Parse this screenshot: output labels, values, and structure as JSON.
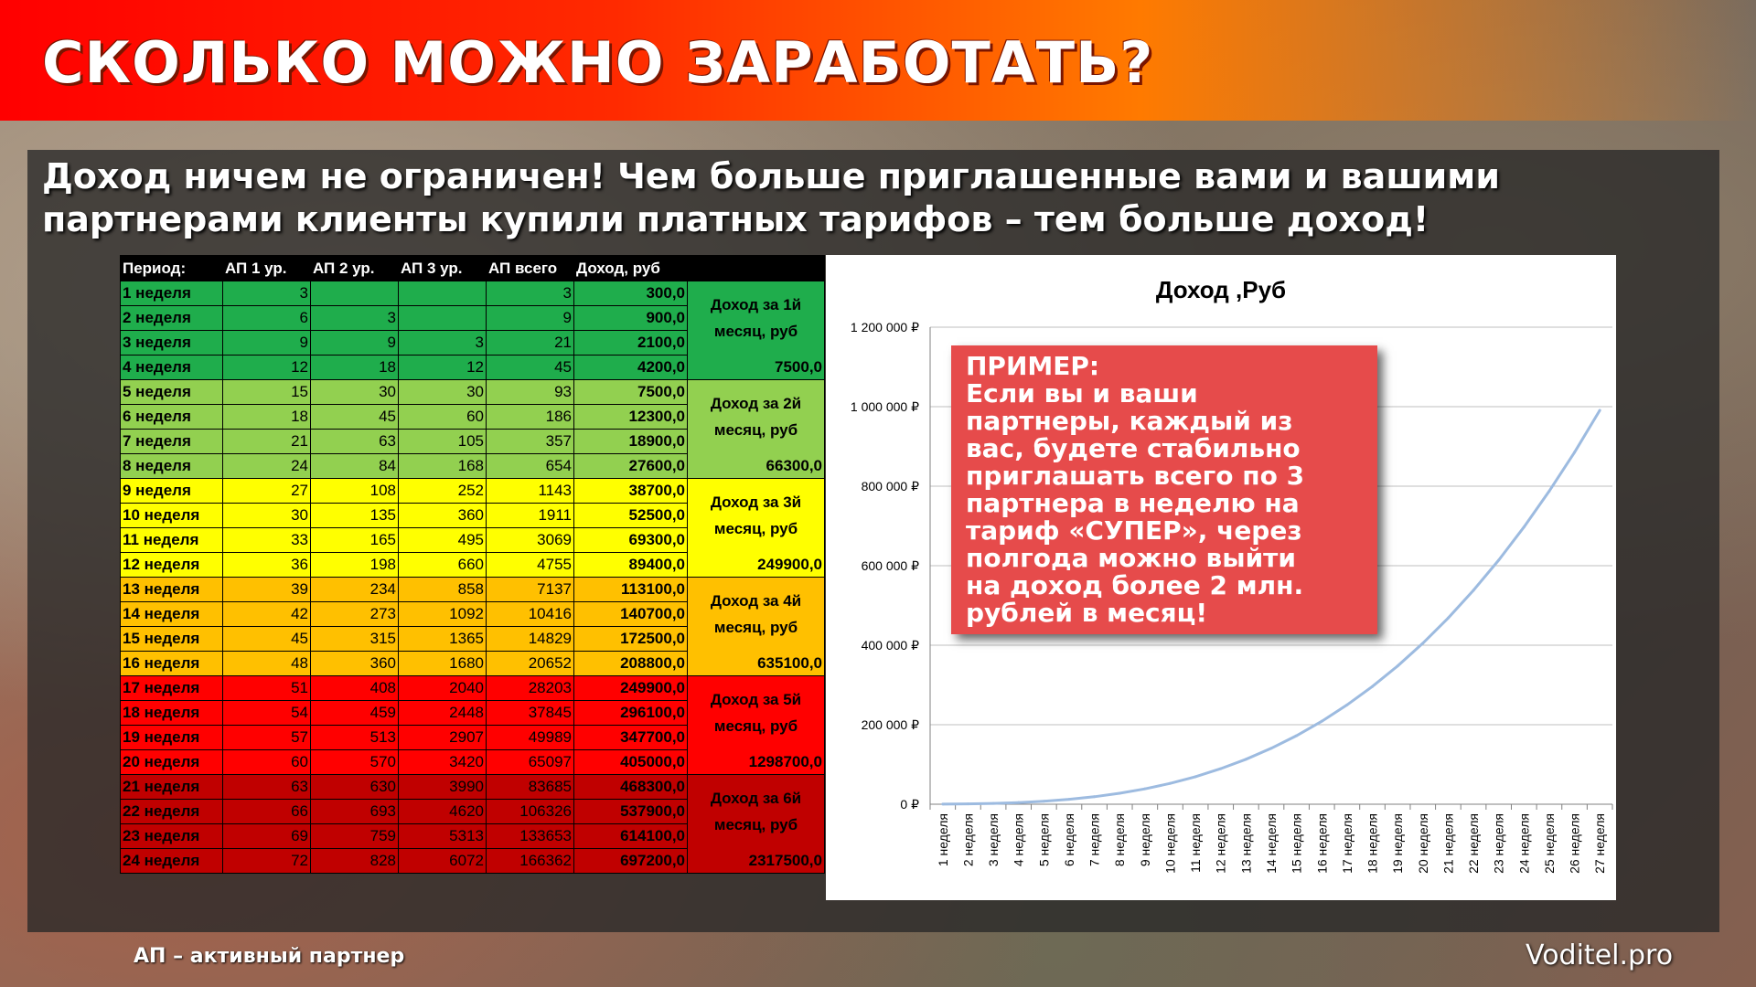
{
  "title": "СКОЛЬКО МОЖНО ЗАРАБОТАТЬ?",
  "subtitle": "Доход ничем не ограничен! Чем больше приглашенные вами и вашими партнерами клиенты купили платных тарифов – тем больше доход!",
  "table": {
    "headers": [
      "Период:",
      "АП 1 ур.",
      "АП 2 ур.",
      "АП 3 ур.",
      "АП всего",
      "Доход, руб"
    ],
    "rows": [
      [
        "1 неделя",
        "3",
        "",
        "",
        "3",
        "300,0"
      ],
      [
        "2 неделя",
        "6",
        "3",
        "",
        "9",
        "900,0"
      ],
      [
        "3 неделя",
        "9",
        "9",
        "3",
        "21",
        "2100,0"
      ],
      [
        "4 неделя",
        "12",
        "18",
        "12",
        "45",
        "4200,0"
      ],
      [
        "5 неделя",
        "15",
        "30",
        "30",
        "93",
        "7500,0"
      ],
      [
        "6 неделя",
        "18",
        "45",
        "60",
        "186",
        "12300,0"
      ],
      [
        "7 неделя",
        "21",
        "63",
        "105",
        "357",
        "18900,0"
      ],
      [
        "8 неделя",
        "24",
        "84",
        "168",
        "654",
        "27600,0"
      ],
      [
        "9 неделя",
        "27",
        "108",
        "252",
        "1143",
        "38700,0"
      ],
      [
        "10 неделя",
        "30",
        "135",
        "360",
        "1911",
        "52500,0"
      ],
      [
        "11 неделя",
        "33",
        "165",
        "495",
        "3069",
        "69300,0"
      ],
      [
        "12 неделя",
        "36",
        "198",
        "660",
        "4755",
        "89400,0"
      ],
      [
        "13 неделя",
        "39",
        "234",
        "858",
        "7137",
        "113100,0"
      ],
      [
        "14 неделя",
        "42",
        "273",
        "1092",
        "10416",
        "140700,0"
      ],
      [
        "15 неделя",
        "45",
        "315",
        "1365",
        "14829",
        "172500,0"
      ],
      [
        "16 неделя",
        "48",
        "360",
        "1680",
        "20652",
        "208800,0"
      ],
      [
        "17 неделя",
        "51",
        "408",
        "2040",
        "28203",
        "249900,0"
      ],
      [
        "18 неделя",
        "54",
        "459",
        "2448",
        "37845",
        "296100,0"
      ],
      [
        "19 неделя",
        "57",
        "513",
        "2907",
        "49989",
        "347700,0"
      ],
      [
        "20 неделя",
        "60",
        "570",
        "3420",
        "65097",
        "405000,0"
      ],
      [
        "21 неделя",
        "63",
        "630",
        "3990",
        "83685",
        "468300,0"
      ],
      [
        "22 неделя",
        "66",
        "693",
        "4620",
        "106326",
        "537900,0"
      ],
      [
        "23 неделя",
        "69",
        "759",
        "5313",
        "133653",
        "614100,0"
      ],
      [
        "24 неделя",
        "72",
        "828",
        "6072",
        "166362",
        "697200,0"
      ]
    ],
    "months": [
      {
        "label": "Доход за 1й месяц, руб",
        "total": "7500,0",
        "color": "#1fad4c"
      },
      {
        "label": "Доход за 2й месяц, руб",
        "total": "66300,0",
        "color": "#92d050"
      },
      {
        "label": "Доход за 3й месяц, руб",
        "total": "249900,0",
        "color": "#ffff00"
      },
      {
        "label": "Доход за 4й месяц, руб",
        "total": "635100,0",
        "color": "#ffc000"
      },
      {
        "label": "Доход за 5й месяц, руб",
        "total": "1298700,0",
        "color": "#ff0000"
      },
      {
        "label": "Доход за 6й месяц, руб",
        "total": "2317500,0",
        "color": "#c00000"
      }
    ]
  },
  "chart_data": {
    "type": "line",
    "title": "Доход ,Руб",
    "x": [
      "1 неделя",
      "2 неделя",
      "3 неделя",
      "4 неделя",
      "5 неделя",
      "6 неделя",
      "7 неделя",
      "8 неделя",
      "9 неделя",
      "10 неделя",
      "11 неделя",
      "12 неделя",
      "13 неделя",
      "14 неделя",
      "15 неделя",
      "16 неделя",
      "17 неделя",
      "18 неделя",
      "19 неделя",
      "20 неделя",
      "21 неделя",
      "22 неделя",
      "23 неделя",
      "24 неделя",
      "25 неделя",
      "26 неделя",
      "27 неделя"
    ],
    "values": [
      300,
      900,
      2100,
      4200,
      7500,
      12300,
      18900,
      27600,
      38700,
      52500,
      69300,
      89400,
      113100,
      140700,
      172500,
      208800,
      249900,
      296100,
      347700,
      405000,
      468300,
      537900,
      614100,
      697200,
      787500,
      885300,
      990900
    ],
    "ylim": [
      0,
      1200000
    ],
    "yticks": [
      0,
      200000,
      400000,
      600000,
      800000,
      1000000,
      1200000
    ],
    "ytick_labels": [
      "0 ₽",
      "200 000 ₽",
      "400 000 ₽",
      "600 000 ₽",
      "800 000 ₽",
      "1 000 000 ₽",
      "1 200 000 ₽"
    ],
    "grid": true,
    "line_color": "#9dbbe0"
  },
  "callout": {
    "lines": [
      "ПРИМЕР:",
      "Если вы и ваши",
      "партнеры, каждый из",
      "вас, будете стабильно",
      "приглашать всего по 3",
      "партнера в неделю на",
      "тариф «СУПЕР», через",
      "полгода можно выйти",
      "на доход более 2 млн.",
      "рублей в месяц!"
    ]
  },
  "footnote": "АП – активный партнер",
  "brand": "Voditel.pro",
  "colors": {
    "title_bar": "#ff2a00",
    "header_bg": "#000000",
    "callout_bg": "#e64b4b"
  }
}
